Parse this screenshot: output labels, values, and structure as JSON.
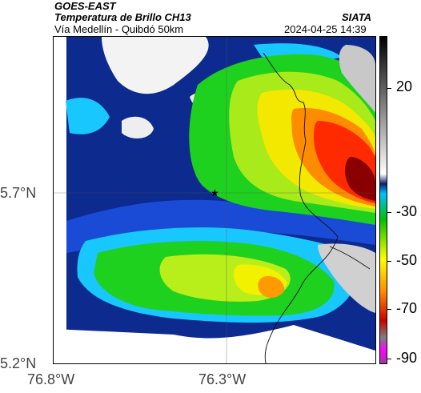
{
  "header": {
    "satellite": "GOES-EAST",
    "product": "Temperatura de Brillo CH13",
    "source": "SIATA",
    "route": "Vía Medellín - Quibdó 50km",
    "timestamp": "2024-04-25 14:39"
  },
  "axes": {
    "lat_ticks": [
      "5.7°N",
      "5.2°N"
    ],
    "lon_ticks": [
      "76.8°W",
      "76.3°W"
    ]
  },
  "colorbar": {
    "ticks": [
      "20",
      "-30",
      "-50",
      "-70",
      "-90"
    ],
    "colors": [
      "#9a3b9b",
      "#ff00ff",
      "#7f7f7f",
      "#cc0000",
      "#ff8c00",
      "#ffff00",
      "#00c000",
      "#00bfff",
      "#0b1f6e",
      "#ffffff",
      "#000000"
    ]
  },
  "map": {
    "marker": "star-icon",
    "colors": {
      "deep_blue": "#0b1f6e",
      "blue": "#1a4bd6",
      "cyan": "#1ad0ff",
      "green": "#1fd11f",
      "yellow": "#f2f200",
      "orange": "#ff8c00",
      "red": "#ff2200",
      "dark_red": "#8a0000",
      "grey": "#c8c8c8"
    }
  }
}
